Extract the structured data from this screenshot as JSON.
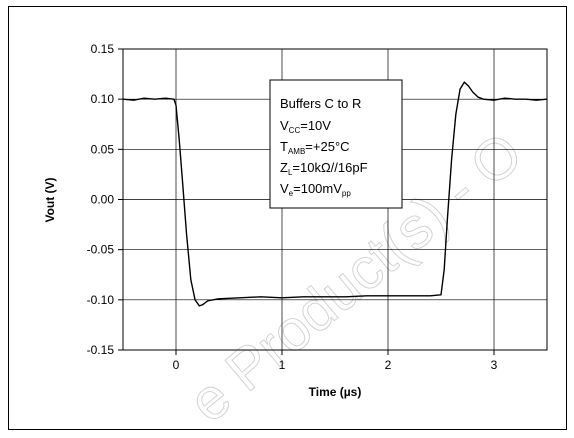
{
  "chart_data": {
    "type": "line",
    "title": "",
    "xlabel": "Time (µs)",
    "ylabel": "Vout (V)",
    "xlim": [
      -0.5,
      3.5
    ],
    "ylim": [
      -0.15,
      0.15
    ],
    "xticks": [
      0,
      1,
      2,
      3
    ],
    "xtick_labels": [
      "0",
      "1",
      "2",
      "3"
    ],
    "yticks": [
      0.15,
      0.1,
      0.05,
      0.0,
      -0.05,
      -0.1,
      -0.15
    ],
    "ytick_labels": [
      "0.15",
      "0.10",
      "0.05",
      "0.00",
      "-0.05",
      "-0.10",
      "-0.15"
    ],
    "grid": true,
    "series": [
      {
        "x": [
          -0.5,
          -0.4,
          -0.3,
          -0.2,
          -0.1,
          -0.02,
          0.0,
          0.03,
          0.06,
          0.1,
          0.14,
          0.18,
          0.22,
          0.25,
          0.3,
          0.4,
          0.6,
          0.8,
          1.0,
          1.2,
          1.4,
          1.6,
          1.8,
          2.0,
          2.2,
          2.4,
          2.5,
          2.53,
          2.56,
          2.6,
          2.64,
          2.68,
          2.72,
          2.76,
          2.8,
          2.85,
          2.9,
          3.0,
          3.1,
          3.2,
          3.3,
          3.4,
          3.5
        ],
        "y": [
          0.1,
          0.099,
          0.101,
          0.1,
          0.101,
          0.1,
          0.094,
          0.06,
          0.02,
          -0.035,
          -0.08,
          -0.1,
          -0.106,
          -0.105,
          -0.101,
          -0.099,
          -0.098,
          -0.097,
          -0.098,
          -0.097,
          -0.097,
          -0.097,
          -0.096,
          -0.096,
          -0.096,
          -0.096,
          -0.095,
          -0.07,
          -0.02,
          0.04,
          0.085,
          0.11,
          0.117,
          0.113,
          0.107,
          0.102,
          0.1,
          0.099,
          0.101,
          0.1,
          0.1,
          0.099,
          0.1
        ]
      }
    ],
    "annotations": {
      "line1": "Buffers C to R",
      "line2_main": "V",
      "line2_sub": "CC",
      "line2_rest": "=10V",
      "line3_main": "T",
      "line3_sub": "AMB",
      "line3_rest": "=+25°C",
      "line4_main": "Z",
      "line4_sub": "L",
      "line4_rest": "=10kΩ//16pF",
      "line5_main": "V",
      "line5_sub": "e",
      "line5_rest": "=100mV",
      "line5_sub2": "pp"
    },
    "colors": {
      "line": "#000000",
      "grid": "#000000",
      "watermark": "#cfcfcf"
    }
  },
  "watermark": "e Product(s) - O"
}
